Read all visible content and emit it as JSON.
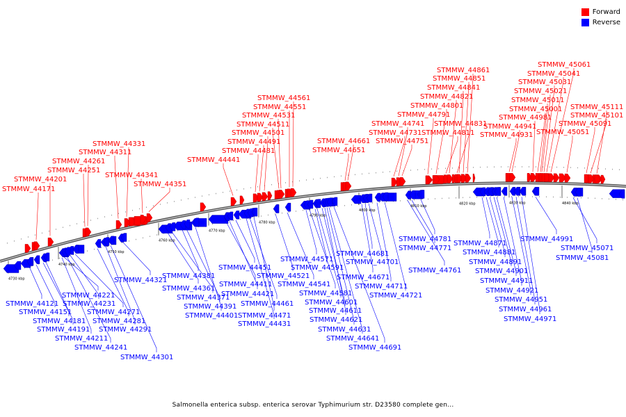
{
  "legend": {
    "forward_label": "Forward",
    "reverse_label": "Reverse",
    "forward_color": "#ff0000",
    "reverse_color": "#0000ff"
  },
  "caption": "Salmonella enterica subsp. enterica serovar Typhimurium str. D23580 complete gen...",
  "axis": {
    "ticks": [
      "4730 kbp",
      "4740 kbp",
      "4750 kbp",
      "4760 kbp",
      "4770 kbp",
      "4780 kbp",
      "4790 kbp",
      "4800 kbp",
      "4810 kbp",
      "4820 kbp",
      "4830 kbp",
      "4840 kbp"
    ]
  },
  "forward_genes": [
    "STMMW_44171",
    "STMMW_44201",
    "STMMW_44251",
    "STMMW_44261",
    "STMMW_44311",
    "STMMW_44331",
    "STMMW_44341",
    "STMMW_44351",
    "STMMW_44441",
    "STMMW_44481",
    "STMMW_44491",
    "STMMW_44501",
    "STMMW_44511",
    "STMMW_44531",
    "STMMW_44551",
    "STMMW_44561",
    "STMMW_44651",
    "STMMW_44661",
    "STMMW_44731",
    "STMMW_44741",
    "STMMW_44751",
    "STMMW_44791",
    "STMMW_44801",
    "STMMW_44811",
    "STMMW_44821",
    "STMMW_44831",
    "STMMW_44841",
    "STMMW_44851",
    "STMMW_44861",
    "STMMW_44931",
    "STMMW_44941",
    "STMMW_44981",
    "STMMW_45001",
    "STMMW_45011",
    "STMMW_45021",
    "STMMW_45031",
    "STMMW_45041",
    "STMMW_45051",
    "STMMW_45061",
    "STMMW_45091",
    "STMMW_45101",
    "STMMW_45111"
  ],
  "reverse_genes": [
    "STMMW_44121",
    "STMMW_44151",
    "STMMW_44181",
    "STMMW_44191",
    "STMMW_44211",
    "STMMW_44221",
    "STMMW_44231",
    "STMMW_44241",
    "STMMW_44271",
    "STMMW_44281",
    "STMMW_44291",
    "STMMW_44301",
    "STMMW_44321",
    "STMMW_44361",
    "STMMW_44371",
    "STMMW_44381",
    "STMMW_44391",
    "STMMW_44401",
    "STMMW_44411",
    "STMMW_44421",
    "STMMW_44431",
    "STMMW_44451",
    "STMMW_44461",
    "STMMW_44471",
    "STMMW_44521",
    "STMMW_44541",
    "STMMW_44571",
    "STMMW_44581",
    "STMMW_44591",
    "STMMW_44601",
    "STMMW_44611",
    "STMMW_44621",
    "STMMW_44631",
    "STMMW_44641",
    "STMMW_44671",
    "STMMW_44681",
    "STMMW_44691",
    "STMMW_44701",
    "STMMW_44711",
    "STMMW_44721",
    "STMMW_44761",
    "STMMW_44771",
    "STMMW_44781",
    "STMMW_44871",
    "STMMW_44881",
    "STMMW_44891",
    "STMMW_44901",
    "STMMW_44911",
    "STMMW_44921",
    "STMMW_44951",
    "STMMW_44961",
    "STMMW_44971",
    "STMMW_44991",
    "STMMW_45071",
    "STMMW_45081"
  ]
}
